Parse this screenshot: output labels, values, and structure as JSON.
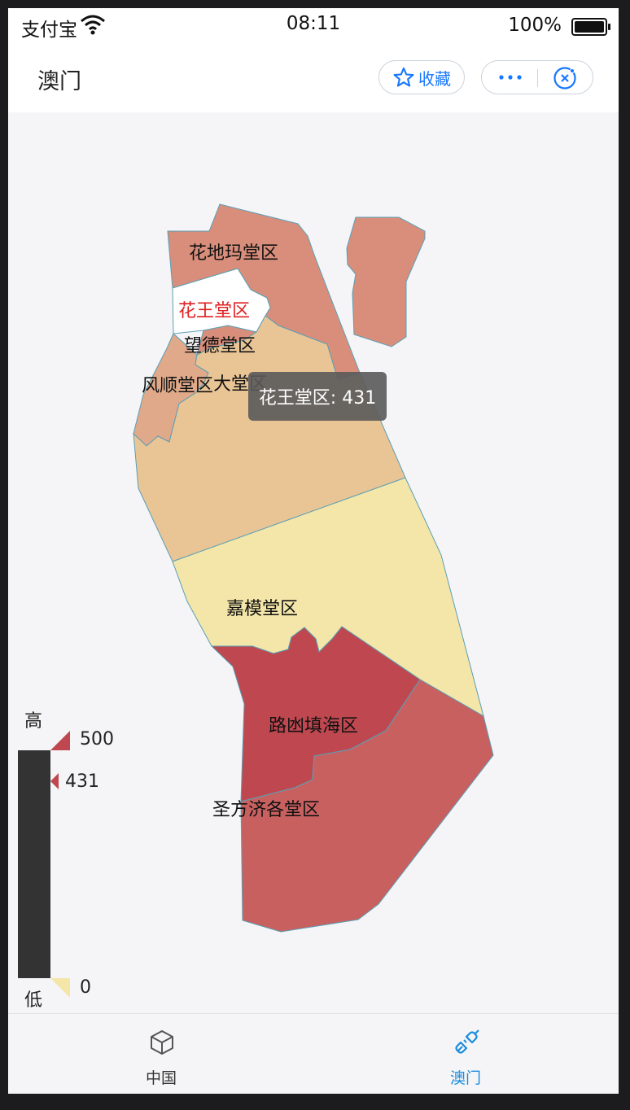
{
  "status_bar": {
    "carrier": "支付宝",
    "time": "08:11",
    "battery": "100%"
  },
  "nav": {
    "title": "澳门",
    "favorite_label": "收藏"
  },
  "map": {
    "regions": [
      {
        "name": "花地玛堂区",
        "fill": "#d98e7b"
      },
      {
        "name": "花王堂区",
        "fill": "#ffffff",
        "selected": true,
        "value": 431
      },
      {
        "name": "望德堂区",
        "fill": "#d98e7b"
      },
      {
        "name": "风顺堂区",
        "fill": "#e0a98a"
      },
      {
        "name": "大堂区",
        "fill": "#e9c596"
      },
      {
        "name": "嘉模堂区",
        "fill": "#f4e6a9"
      },
      {
        "name": "路凼填海区",
        "fill": "#bf4850"
      },
      {
        "name": "圣方济各堂区",
        "fill": "#c96060"
      }
    ],
    "selected_label_color": "#e02020",
    "tooltip": "花王堂区: 431"
  },
  "legend": {
    "high_label": "高",
    "low_label": "低",
    "max": "500",
    "current": "431",
    "min": "0",
    "max_color": "#bf4850",
    "min_color": "#f4e6a9"
  },
  "tabs": [
    {
      "label": "中国",
      "icon": "cube-icon",
      "active": false
    },
    {
      "label": "澳门",
      "icon": "plug-icon",
      "active": true
    }
  ]
}
